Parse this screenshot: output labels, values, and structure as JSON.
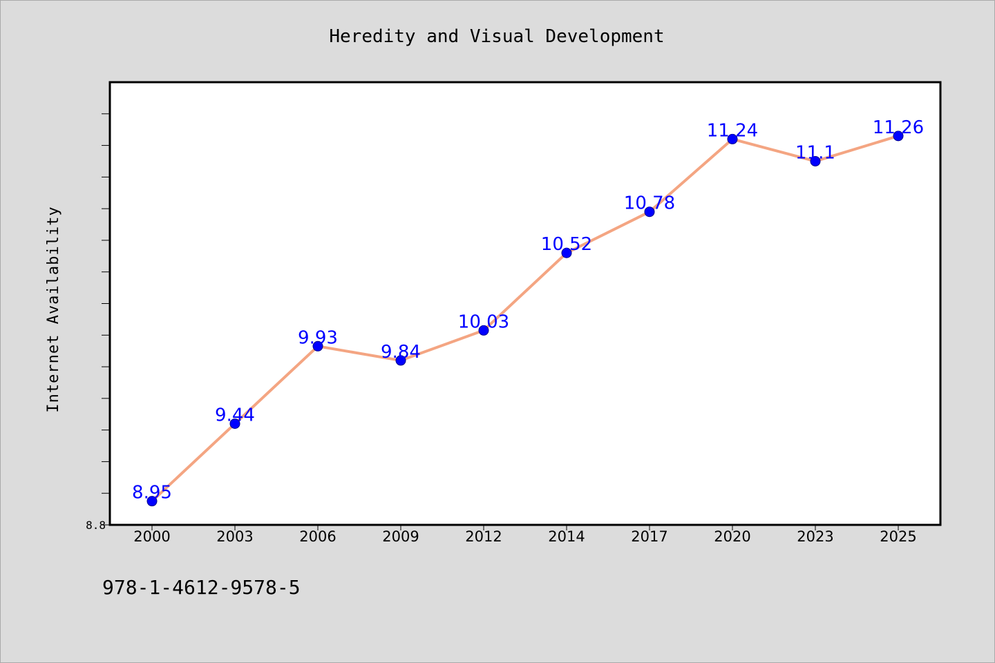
{
  "chart_data": {
    "type": "line",
    "title": "Heredity and Visual Development",
    "xlabel": "",
    "ylabel": "Internet Availability",
    "categories": [
      "2000",
      "2003",
      "2006",
      "2009",
      "2012",
      "2014",
      "2017",
      "2020",
      "2023",
      "2025"
    ],
    "series": [
      {
        "values": [
          8.95,
          9.44,
          9.93,
          9.84,
          10.03,
          10.52,
          10.78,
          11.24,
          11.1,
          11.26
        ],
        "color": "#f4a582",
        "marker_color": "#0000ff"
      }
    ],
    "data_labels": [
      "8.95",
      "9.44",
      "9.93",
      "9.84",
      "10.03",
      "10.52",
      "10.78",
      "11.24",
      "11.1",
      "11.26"
    ],
    "y_tick_labels": [
      "8.8"
    ],
    "ylim": [
      8.8,
      11.6
    ],
    "grid": false,
    "legend": "none"
  },
  "footer": {
    "code": "978-1-4612-9578-5"
  },
  "colors": {
    "background": "#dcdcdc",
    "plot_background": "#ffffff",
    "line": "#f4a582",
    "marker": "#0000ff",
    "data_label": "#0000ff"
  }
}
